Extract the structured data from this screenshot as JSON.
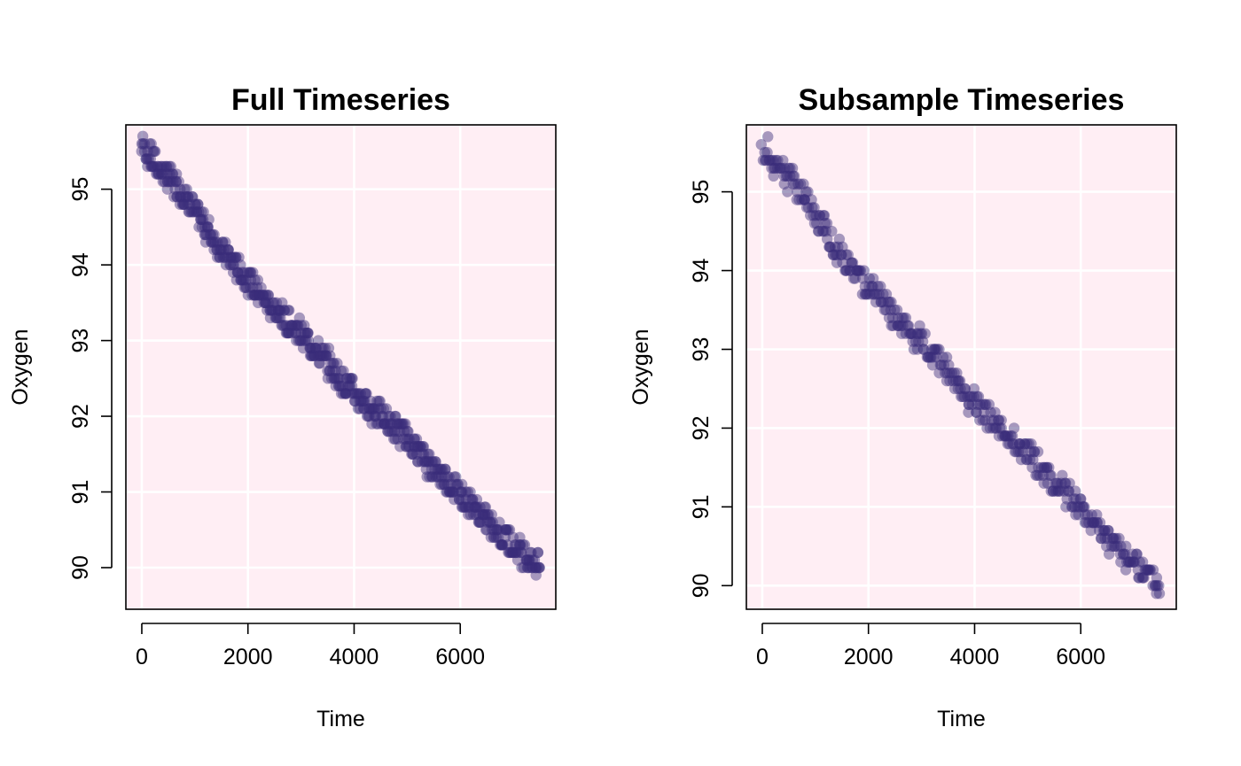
{
  "colors": {
    "panel_background": "#ffeef4",
    "point_color": "#3a2c7a",
    "grid_color": "#ffffff"
  },
  "chart_data": [
    {
      "type": "scatter",
      "title": "Full Timeseries",
      "xlabel": "Time",
      "ylabel": "Oxygen",
      "xlim": [
        -300,
        7800
      ],
      "ylim": [
        89.45,
        95.85
      ],
      "xticks": [
        0,
        2000,
        4000,
        6000
      ],
      "yticks": [
        90,
        91,
        92,
        93,
        94,
        95
      ],
      "grid": true,
      "series": [
        {
          "x": [
            0,
            300,
            700,
            1000,
            1500,
            2000,
            2500,
            3000,
            3500,
            4000,
            4500,
            5000,
            5500,
            6000,
            6500,
            7000,
            7500
          ],
          "y": [
            95.6,
            95.3,
            95.0,
            94.7,
            94.2,
            93.8,
            93.4,
            93.1,
            92.7,
            92.3,
            92.0,
            91.7,
            91.3,
            91.0,
            90.6,
            90.3,
            90.0
          ]
        }
      ]
    },
    {
      "type": "scatter",
      "title": "Subsample Timeseries",
      "xlabel": "Time",
      "ylabel": "Oxygen",
      "xlim": [
        -300,
        7800
      ],
      "ylim": [
        89.7,
        95.85
      ],
      "xticks": [
        0,
        2000,
        4000,
        6000
      ],
      "yticks": [
        90,
        91,
        92,
        93,
        94,
        95
      ],
      "grid": true,
      "series": [
        {
          "x": [
            0,
            300,
            700,
            1000,
            1500,
            2000,
            2500,
            3000,
            3500,
            4000,
            4500,
            5000,
            5500,
            6000,
            6500,
            7000,
            7500
          ],
          "y": [
            95.6,
            95.3,
            95.0,
            94.7,
            94.2,
            93.8,
            93.4,
            93.1,
            92.7,
            92.3,
            92.0,
            91.7,
            91.3,
            91.0,
            90.6,
            90.3,
            90.0
          ]
        }
      ]
    }
  ]
}
